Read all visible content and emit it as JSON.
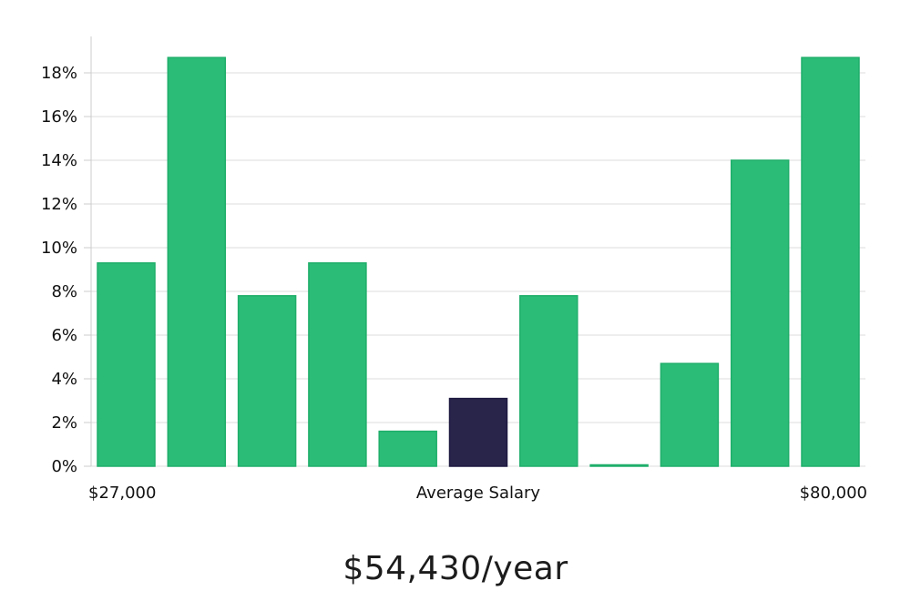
{
  "chart_data": {
    "type": "bar",
    "title": "",
    "ylabel": "",
    "xlabel": "Average Salary",
    "x_start_label": "$27,000",
    "x_end_label": "$80,000",
    "ylim": [
      0,
      19.5
    ],
    "y_ticks": [
      0,
      2,
      4,
      6,
      8,
      10,
      12,
      14,
      16,
      18
    ],
    "y_tick_suffix": "%",
    "grid": true,
    "values": [
      9.3,
      18.7,
      7.8,
      9.3,
      1.6,
      3.1,
      7.8,
      0,
      4.7,
      14.0,
      18.7
    ],
    "highlight_index": 5,
    "colors": {
      "bar": "#2bbd78",
      "bar_edge": "#1fae6a",
      "highlight": "#29244a",
      "grid": "#dddddd",
      "axis": "#cccccc"
    }
  },
  "summary": {
    "average_salary_text": "$54,430/year"
  }
}
